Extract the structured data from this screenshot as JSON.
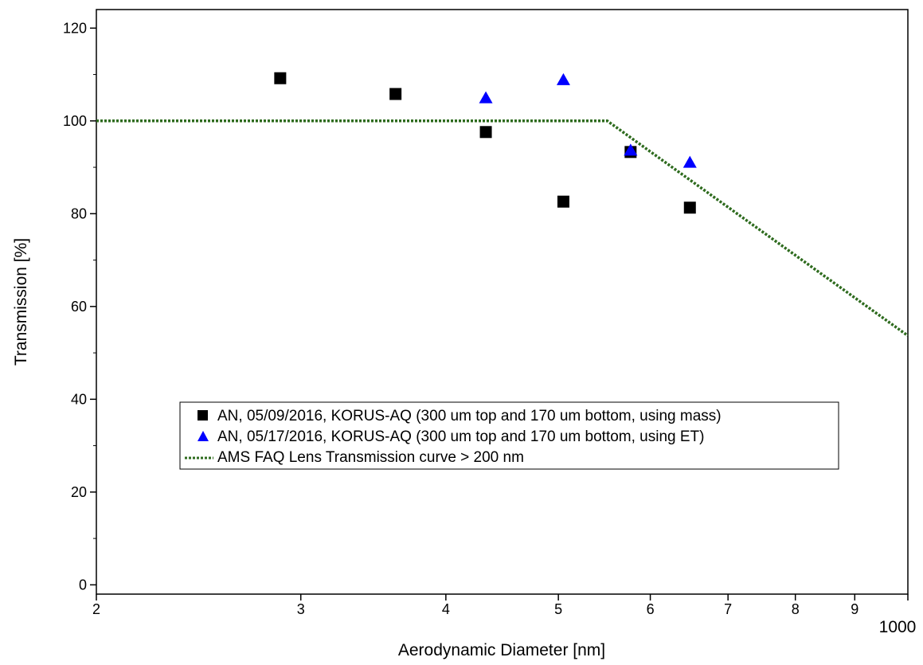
{
  "chart_data": {
    "type": "scatter",
    "title": "",
    "xlabel": "Aerodynamic Diameter [nm]",
    "ylabel": "Transmission [%]",
    "x_scale": "log",
    "xlim": [
      200,
      1000
    ],
    "ylim": [
      -2,
      124
    ],
    "grid": false,
    "legend_position": "center-left",
    "x_ticks": [
      {
        "value": 200,
        "label": "2"
      },
      {
        "value": 300,
        "label": "3"
      },
      {
        "value": 400,
        "label": "4"
      },
      {
        "value": 500,
        "label": "5"
      },
      {
        "value": 600,
        "label": "6"
      },
      {
        "value": 700,
        "label": "7"
      },
      {
        "value": 800,
        "label": "8"
      },
      {
        "value": 900,
        "label": "9"
      },
      {
        "value": 1000,
        "label": "1000"
      }
    ],
    "y_ticks": [
      {
        "value": 0,
        "label": "0"
      },
      {
        "value": 20,
        "label": "20"
      },
      {
        "value": 40,
        "label": "40"
      },
      {
        "value": 60,
        "label": "60"
      },
      {
        "value": 80,
        "label": "80"
      },
      {
        "value": 100,
        "label": "100"
      },
      {
        "value": 120,
        "label": "120"
      }
    ],
    "series": [
      {
        "name": "AN, 05/09/2016, KORUS-AQ (300 um top and 170 um bottom, using mass)",
        "marker": "square",
        "color": "#000000",
        "x": [
          288,
          362,
          433,
          505,
          577,
          649
        ],
        "y": [
          109.2,
          105.8,
          97.6,
          82.6,
          93.3,
          81.3
        ]
      },
      {
        "name": "AN, 05/17/2016, KORUS-AQ (300 um top and 170 um bottom, using ET)",
        "marker": "triangle",
        "color": "#0000ff",
        "x": [
          433,
          505,
          577,
          649
        ],
        "y": [
          105.1,
          109.0,
          93.8,
          91.2
        ]
      },
      {
        "name": "AMS FAQ Lens Transmission curve > 200 nm",
        "marker": "dotted-line",
        "color": "#2e6b1e",
        "x": [
          200,
          551,
          1000
        ],
        "y": [
          100,
          100,
          53.7
        ]
      }
    ]
  }
}
